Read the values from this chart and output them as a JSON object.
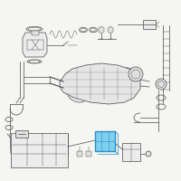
{
  "bg_color": "#f5f5f2",
  "line_color": "#5a5a5a",
  "lw_main": 0.55,
  "lw_thick": 0.9,
  "lw_thin": 0.35,
  "highlight_fill": "#7ecff0",
  "highlight_edge": "#2b8fc0",
  "part_fill": "#ececec",
  "part_fill2": "#e0e0e0",
  "fig_size": [
    2.0,
    2.0
  ],
  "dpi": 100
}
